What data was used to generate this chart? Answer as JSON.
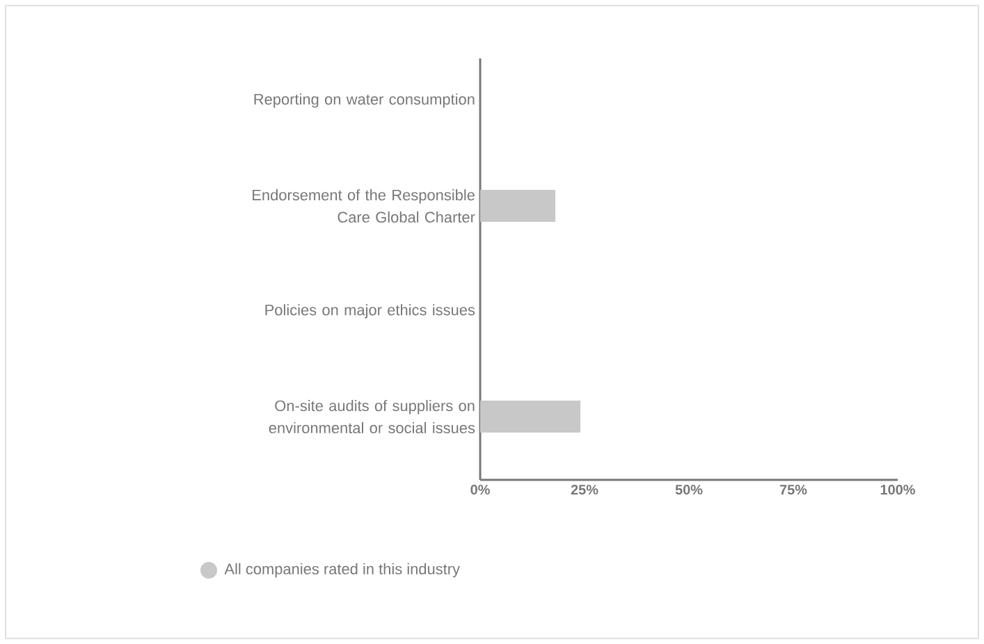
{
  "chart_data": {
    "type": "bar",
    "orientation": "horizontal",
    "categories": [
      "Reporting on water consumption",
      "Endorsement of the Responsible Care Global Charter",
      "Policies on major ethics issues",
      "On-site audits of suppliers on environmental or social issues"
    ],
    "series": [
      {
        "name": "All companies rated in this industry",
        "color": "#c8c8c8",
        "values": [
          0,
          18,
          0,
          24
        ]
      }
    ],
    "xlim": [
      0,
      100
    ],
    "xticks": [
      {
        "value": 0,
        "label": "0%"
      },
      {
        "value": 25,
        "label": "25%"
      },
      {
        "value": 50,
        "label": "50%"
      },
      {
        "value": 75,
        "label": "75%"
      },
      {
        "value": 100,
        "label": "100%"
      }
    ],
    "grid": false,
    "legend": "bottom"
  }
}
